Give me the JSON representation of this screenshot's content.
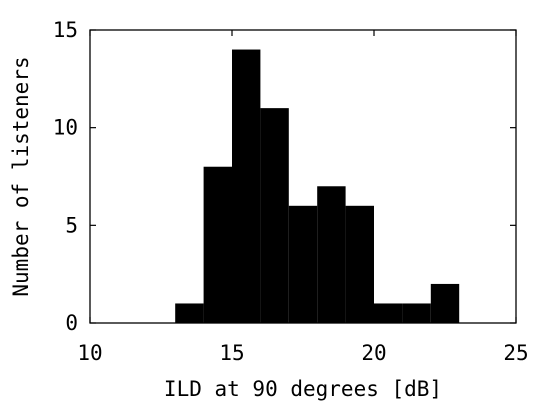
{
  "chart_data": {
    "type": "bar",
    "title": "",
    "xlabel": "ILD at 90 degrees [dB]",
    "ylabel": "Number of listeners",
    "xlim": [
      10,
      25
    ],
    "ylim": [
      0,
      15
    ],
    "grid": false,
    "bar_color": "#000000",
    "x_ticks": [
      10,
      15,
      20,
      25
    ],
    "y_ticks": [
      0,
      5,
      10,
      15
    ],
    "bins": [
      {
        "x_start": 13,
        "x_end": 14,
        "value": 1
      },
      {
        "x_start": 14,
        "x_end": 15,
        "value": 8
      },
      {
        "x_start": 15,
        "x_end": 16,
        "value": 14
      },
      {
        "x_start": 16,
        "x_end": 17,
        "value": 11
      },
      {
        "x_start": 17,
        "x_end": 18,
        "value": 6
      },
      {
        "x_start": 18,
        "x_end": 19,
        "value": 7
      },
      {
        "x_start": 19,
        "x_end": 20,
        "value": 6
      },
      {
        "x_start": 20,
        "x_end": 21,
        "value": 1
      },
      {
        "x_start": 21,
        "x_end": 22,
        "value": 1
      },
      {
        "x_start": 22,
        "x_end": 23,
        "value": 2
      }
    ]
  }
}
